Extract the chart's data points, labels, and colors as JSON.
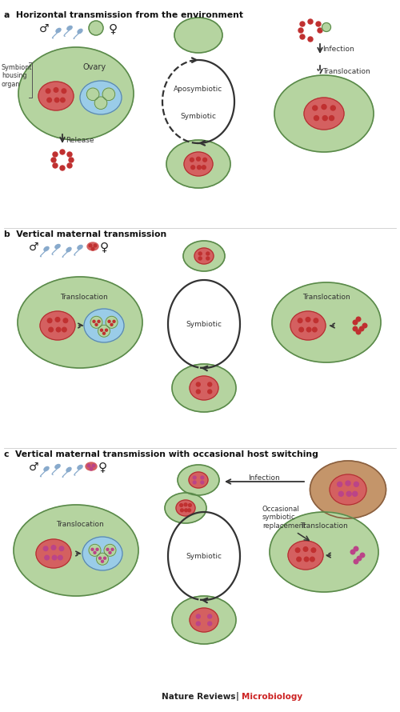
{
  "section_a_title": "a  Horizontal transmission from the environment",
  "section_b_title": "b  Vertical maternal transmission",
  "section_c_title": "c  Vertical maternal transmission with occasional host switching",
  "colors": {
    "green_body_fill": "#b5d4a0",
    "green_body_grad": "#c8ddb8",
    "green_stroke": "#5a8a4a",
    "red_fill": "#d46060",
    "red_stroke": "#b03030",
    "red_dot": "#c03030",
    "blue_fill": "#9acce8",
    "blue_stroke": "#5a88aa",
    "green_egg": "#b5d4a0",
    "pink_dot": "#bb4488",
    "brown_fill": "#c4956a",
    "brown_stroke": "#8a6040",
    "text": "#333333",
    "arrow": "#333333",
    "sperm": "#88aacc",
    "footer_black": "#222222",
    "footer_red": "#cc2222"
  }
}
